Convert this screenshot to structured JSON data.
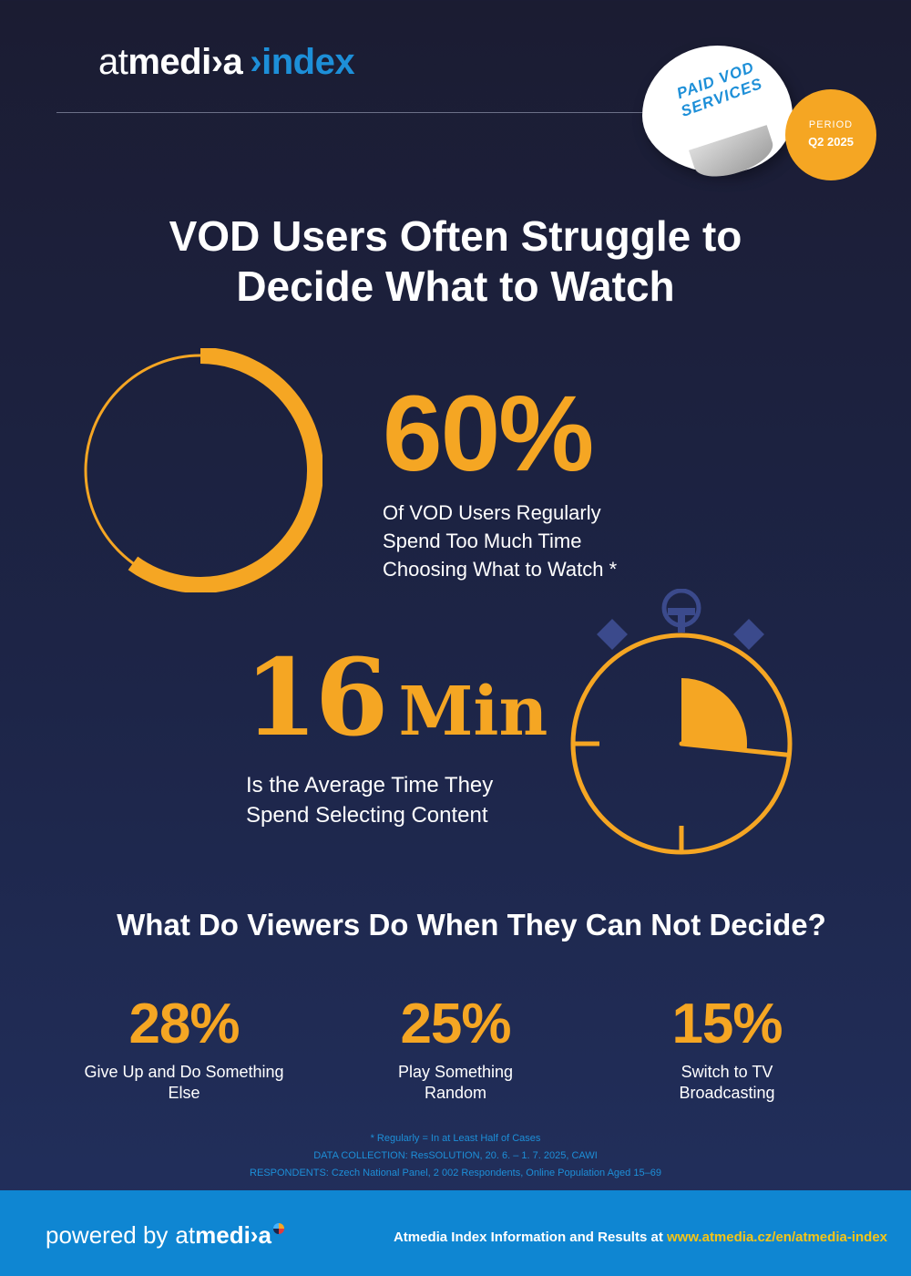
{
  "header": {
    "logo_at": "at",
    "logo_media": "medi›a",
    "logo_index": "›index",
    "sticker_line1": "PAID VOD",
    "sticker_line2": "SERVICES",
    "period_label": "PERIOD",
    "period_value": "Q2 2025"
  },
  "headline": {
    "line1": "VOD Users Often Struggle to",
    "line2": "Decide What to Watch"
  },
  "stat_main": {
    "value": "60%",
    "fraction": 0.6,
    "line1": "Of VOD Users Regularly",
    "line2": "Spend Too Much Time",
    "line3": "Choosing What to Watch *"
  },
  "stat_time": {
    "number": "16",
    "unit": "Min",
    "minutes": 16,
    "line1": "Is the Average Time They",
    "line2": "Spend Selecting Content"
  },
  "subheading": "What Do Viewers Do When They Can Not Decide?",
  "options": [
    {
      "value": "28%",
      "line1": "Give Up and Do Something",
      "line2": "Else"
    },
    {
      "value": "25%",
      "line1": "Play Something",
      "line2": "Random"
    },
    {
      "value": "15%",
      "line1": "Switch to TV",
      "line2": "Broadcasting"
    }
  ],
  "notes": {
    "line1": "* Regularly = In at Least Half of Cases",
    "line2": "DATA COLLECTION: ResSOLUTION, 20. 6. – 1. 7. 2025, CAWI",
    "line3": "RESPONDENTS: Czech National Panel, 2 002 Respondents, Online Population Aged 15–69"
  },
  "footer": {
    "powered_by": "powered by",
    "brand_at": "at",
    "brand_media": "medi›a",
    "info_text": "Atmedia Index Information and Results at ",
    "info_url": "www.atmedia.cz/en/atmedia-index"
  },
  "colors": {
    "accent": "#f5a623",
    "brand_blue": "#1d8fd8",
    "background": "#1d2548"
  }
}
